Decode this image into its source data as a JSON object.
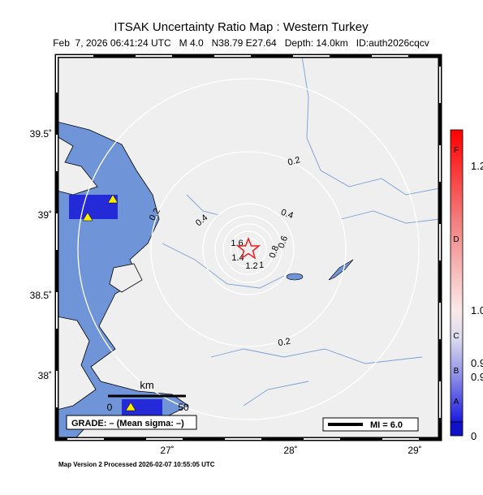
{
  "header": {
    "title": "ITSAK Uncertainty Ratio Map : Western Turkey",
    "subtitle": "Feb  7, 2026 06:41:24 UTC   M 4.0   N38.79 E27.64   Depth: 14.0km   ID:auth2026cqcv"
  },
  "map": {
    "lat_labels": [
      "39.5˚",
      "39˚",
      "38.5˚",
      "38˚"
    ],
    "lon_labels": [
      "27˚",
      "28˚",
      "29˚"
    ],
    "contour_labels": [
      "0.2",
      "0.2",
      "0.2",
      "0.4",
      "0.4",
      "1.6",
      "1.4",
      "1.2",
      "1",
      "0.8",
      "0.6"
    ]
  },
  "colorbar": {
    "grades": [
      "F",
      "D",
      "C",
      "B",
      "A"
    ],
    "values": [
      "1.2",
      "1.0",
      "0.9",
      "0.9",
      "0"
    ]
  },
  "scale_bar": {
    "unit": "km",
    "start": "0",
    "end": "50"
  },
  "legend": {
    "grade": "GRADE: – (Mean sigma: –)",
    "mi": "MI = 6.0"
  },
  "footer": "Map Version 2 Processed 2026-02-07 10:55:05 UTC"
}
